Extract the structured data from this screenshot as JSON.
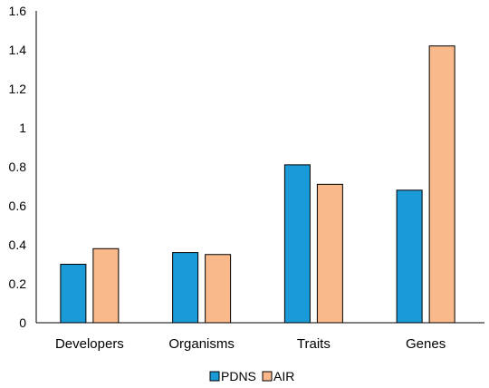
{
  "chart_data": {
    "type": "bar",
    "categories": [
      "Developers",
      "Organisms",
      "Traits",
      "Genes"
    ],
    "series": [
      {
        "name": "PDNS",
        "values": [
          0.3,
          0.36,
          0.81,
          0.68
        ],
        "color": "#1a9ad6"
      },
      {
        "name": "AIR",
        "values": [
          0.38,
          0.35,
          0.71,
          1.42
        ],
        "color": "#f9b98a"
      }
    ],
    "yticks": [
      "0",
      "0.2",
      "0.4",
      "0.6",
      "0.8",
      "1",
      "1.2",
      "1.4",
      "1.6"
    ],
    "ylim": [
      0,
      1.6
    ],
    "grid": false,
    "legend_position": "bottom",
    "title": "",
    "xlabel": "",
    "ylabel": ""
  },
  "colors": {
    "axis": "#000000",
    "bar_stroke": "#000000"
  }
}
